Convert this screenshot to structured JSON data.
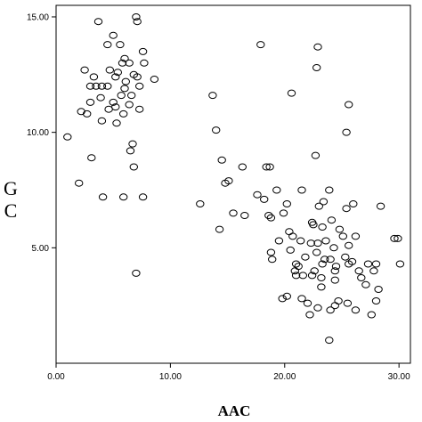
{
  "chart_data": {
    "type": "scatter",
    "title": "",
    "xlabel": "AAC",
    "ylabel_lines": [
      "G",
      "C"
    ],
    "xlim": [
      0,
      31
    ],
    "ylim": [
      0,
      15.5
    ],
    "x_ticks": [
      0,
      10,
      20,
      30
    ],
    "x_tick_labels": [
      "0.00",
      "10.00",
      "20.00",
      "30.00"
    ],
    "y_ticks": [
      5,
      10,
      15
    ],
    "y_tick_labels": [
      "5.00",
      "10.00",
      "15.00"
    ],
    "grid": false,
    "legend": "none",
    "marker": "open-circle",
    "marker_color": "#000000",
    "series": [
      {
        "points": [
          [
            3.7,
            14.8
          ],
          [
            7.0,
            15.0
          ],
          [
            7.1,
            14.8
          ],
          [
            5.0,
            14.2
          ],
          [
            4.5,
            13.8
          ],
          [
            5.6,
            13.8
          ],
          [
            7.6,
            13.5
          ],
          [
            6.0,
            13.2
          ],
          [
            7.7,
            13.0
          ],
          [
            5.8,
            13.0
          ],
          [
            6.4,
            13.0
          ],
          [
            2.5,
            12.7
          ],
          [
            4.7,
            12.7
          ],
          [
            5.4,
            12.6
          ],
          [
            6.8,
            12.5
          ],
          [
            3.3,
            12.4
          ],
          [
            5.2,
            12.4
          ],
          [
            7.1,
            12.4
          ],
          [
            8.6,
            12.3
          ],
          [
            6.1,
            12.2
          ],
          [
            3.0,
            12.0
          ],
          [
            3.5,
            12.0
          ],
          [
            4.0,
            12.0
          ],
          [
            4.5,
            12.0
          ],
          [
            7.3,
            12.0
          ],
          [
            6.0,
            11.9
          ],
          [
            5.7,
            11.6
          ],
          [
            6.6,
            11.6
          ],
          [
            3.9,
            11.5
          ],
          [
            5.0,
            11.3
          ],
          [
            3.0,
            11.3
          ],
          [
            6.4,
            11.2
          ],
          [
            5.2,
            11.1
          ],
          [
            4.6,
            11.0
          ],
          [
            7.3,
            11.0
          ],
          [
            2.2,
            10.9
          ],
          [
            2.7,
            10.8
          ],
          [
            5.9,
            10.8
          ],
          [
            4.0,
            10.5
          ],
          [
            5.3,
            10.4
          ],
          [
            1.0,
            9.8
          ],
          [
            6.7,
            9.5
          ],
          [
            6.5,
            9.2
          ],
          [
            3.1,
            8.9
          ],
          [
            6.8,
            8.5
          ],
          [
            2.0,
            7.8
          ],
          [
            4.1,
            7.2
          ],
          [
            5.9,
            7.2
          ],
          [
            7.6,
            7.2
          ],
          [
            7.0,
            3.9
          ],
          [
            13.7,
            11.6
          ],
          [
            14.0,
            10.1
          ],
          [
            14.5,
            8.8
          ],
          [
            12.6,
            6.9
          ],
          [
            14.3,
            5.8
          ],
          [
            14.8,
            7.8
          ],
          [
            15.1,
            7.9
          ],
          [
            16.3,
            8.5
          ],
          [
            15.5,
            6.5
          ],
          [
            16.5,
            6.4
          ],
          [
            17.9,
            13.8
          ],
          [
            22.9,
            13.7
          ],
          [
            22.8,
            12.8
          ],
          [
            20.6,
            11.7
          ],
          [
            25.6,
            11.2
          ],
          [
            25.4,
            10.0
          ],
          [
            22.7,
            9.0
          ],
          [
            18.4,
            8.5
          ],
          [
            18.7,
            8.5
          ],
          [
            21.5,
            7.5
          ],
          [
            23.9,
            7.5
          ],
          [
            17.6,
            7.3
          ],
          [
            19.3,
            7.5
          ],
          [
            18.2,
            7.1
          ],
          [
            20.2,
            6.9
          ],
          [
            23.4,
            7.0
          ],
          [
            23.0,
            6.8
          ],
          [
            25.4,
            6.7
          ],
          [
            28.4,
            6.8
          ],
          [
            19.9,
            6.5
          ],
          [
            26.0,
            6.9
          ],
          [
            18.6,
            6.4
          ],
          [
            18.8,
            6.3
          ],
          [
            22.4,
            6.1
          ],
          [
            24.1,
            6.2
          ],
          [
            22.5,
            6.0
          ],
          [
            20.4,
            5.7
          ],
          [
            23.3,
            5.9
          ],
          [
            24.8,
            5.8
          ],
          [
            20.7,
            5.5
          ],
          [
            22.9,
            5.2
          ],
          [
            25.1,
            5.5
          ],
          [
            26.2,
            5.5
          ],
          [
            19.5,
            5.3
          ],
          [
            21.4,
            5.3
          ],
          [
            22.3,
            5.2
          ],
          [
            23.6,
            5.3
          ],
          [
            24.3,
            5.0
          ],
          [
            25.6,
            5.1
          ],
          [
            29.6,
            5.4
          ],
          [
            29.9,
            5.4
          ],
          [
            18.8,
            4.8
          ],
          [
            20.5,
            4.9
          ],
          [
            22.8,
            4.8
          ],
          [
            21.8,
            4.6
          ],
          [
            23.5,
            4.5
          ],
          [
            24.0,
            4.5
          ],
          [
            25.3,
            4.6
          ],
          [
            25.9,
            4.4
          ],
          [
            18.9,
            4.5
          ],
          [
            21.0,
            4.3
          ],
          [
            23.3,
            4.3
          ],
          [
            24.5,
            4.2
          ],
          [
            25.6,
            4.3
          ],
          [
            27.3,
            4.3
          ],
          [
            28.0,
            4.3
          ],
          [
            30.1,
            4.3
          ],
          [
            21.2,
            4.2
          ],
          [
            20.9,
            4.0
          ],
          [
            22.6,
            4.0
          ],
          [
            24.4,
            4.0
          ],
          [
            26.5,
            4.0
          ],
          [
            27.8,
            4.0
          ],
          [
            21.0,
            3.8
          ],
          [
            21.6,
            3.8
          ],
          [
            22.4,
            3.8
          ],
          [
            23.2,
            3.7
          ],
          [
            24.4,
            3.6
          ],
          [
            26.7,
            3.7
          ],
          [
            27.1,
            3.4
          ],
          [
            23.2,
            3.3
          ],
          [
            28.2,
            3.2
          ],
          [
            19.8,
            2.8
          ],
          [
            20.2,
            2.9
          ],
          [
            21.5,
            2.8
          ],
          [
            22.0,
            2.6
          ],
          [
            24.7,
            2.7
          ],
          [
            25.5,
            2.6
          ],
          [
            28.0,
            2.7
          ],
          [
            22.9,
            2.4
          ],
          [
            24.0,
            2.3
          ],
          [
            24.4,
            2.5
          ],
          [
            26.2,
            2.3
          ],
          [
            22.2,
            2.1
          ],
          [
            27.6,
            2.1
          ],
          [
            23.9,
            1.0
          ]
        ]
      }
    ]
  }
}
